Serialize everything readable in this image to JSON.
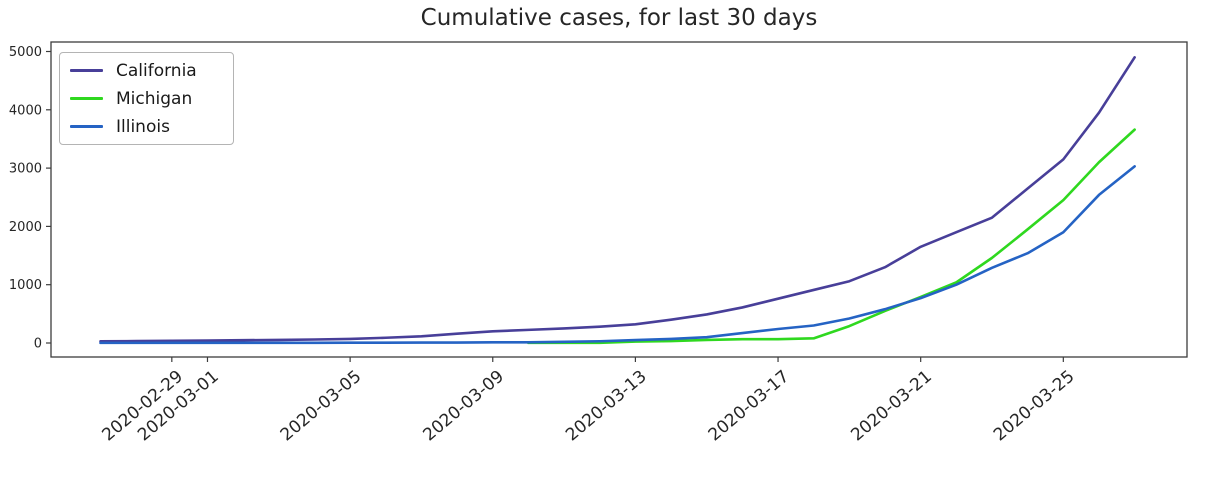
{
  "figure": {
    "background": "#ffffff",
    "axis_color": "#3c3c3c"
  },
  "chart_data": {
    "type": "line",
    "title": "Cumulative cases, for last 30 days",
    "xlabel": "",
    "ylabel": "",
    "grid": false,
    "legend_position": "upper-left",
    "ylim": [
      0,
      5000
    ],
    "yticks": [
      0,
      1000,
      2000,
      3000,
      4000,
      5000
    ],
    "x": [
      "2020-02-27",
      "2020-02-28",
      "2020-02-29",
      "2020-03-01",
      "2020-03-02",
      "2020-03-03",
      "2020-03-04",
      "2020-03-05",
      "2020-03-06",
      "2020-03-07",
      "2020-03-08",
      "2020-03-09",
      "2020-03-10",
      "2020-03-11",
      "2020-03-12",
      "2020-03-13",
      "2020-03-14",
      "2020-03-15",
      "2020-03-16",
      "2020-03-17",
      "2020-03-18",
      "2020-03-19",
      "2020-03-20",
      "2020-03-21",
      "2020-03-22",
      "2020-03-23",
      "2020-03-24",
      "2020-03-25",
      "2020-03-26",
      "2020-03-27"
    ],
    "xtick_indices": [
      2,
      3,
      7,
      11,
      15,
      19,
      23,
      27
    ],
    "xtick_labels": [
      "2020-02-29",
      "2020-03-01",
      "2020-03-05",
      "2020-03-09",
      "2020-03-13",
      "2020-03-17",
      "2020-03-21",
      "2020-03-25"
    ],
    "xtick_rotation_deg": 40,
    "series": [
      {
        "name": "California",
        "color": "#483f99",
        "values": [
          30,
          33,
          38,
          43,
          48,
          53,
          60,
          69,
          90,
          115,
          160,
          200,
          225,
          250,
          280,
          320,
          400,
          490,
          610,
          760,
          910,
          1060,
          1300,
          1650,
          1900,
          2150,
          2650,
          3150,
          3950,
          4900
        ]
      },
      {
        "name": "Michigan",
        "color": "#2fd81f",
        "values": [
          null,
          null,
          null,
          null,
          null,
          null,
          null,
          null,
          null,
          null,
          null,
          null,
          2,
          2,
          2,
          25,
          33,
          53,
          65,
          65,
          80,
          290,
          550,
          790,
          1040,
          1460,
          1950,
          2450,
          3100,
          3660
        ]
      },
      {
        "name": "Illinois",
        "color": "#2563c4",
        "values": [
          2,
          2,
          3,
          3,
          4,
          4,
          4,
          5,
          6,
          7,
          8,
          11,
          12,
          20,
          30,
          50,
          70,
          100,
          170,
          240,
          300,
          420,
          580,
          770,
          1000,
          1290,
          1540,
          1900,
          2540,
          3030
        ]
      }
    ]
  }
}
